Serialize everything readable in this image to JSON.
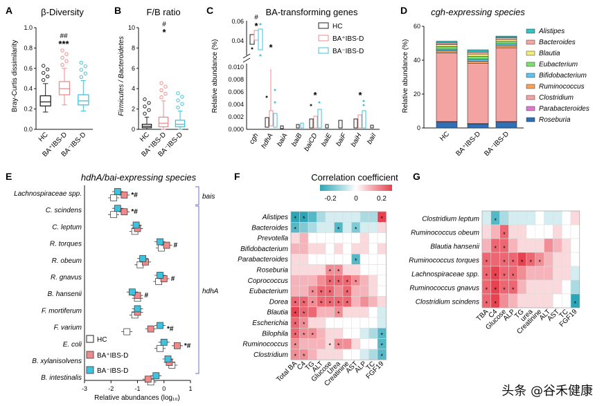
{
  "panels": {
    "A": {
      "letter": "A",
      "title": "β-Diversity",
      "ylabel": "Bray-Curtis dissimilarity",
      "yticks": [
        "0.0",
        "0.2",
        "0.4",
        "0.6",
        "0.8",
        "1.0"
      ],
      "groups": [
        "HC",
        "BA⁺IBS-D",
        "BA⁻IBS-D"
      ],
      "sig": {
        "hash": "##",
        "star": "***"
      }
    },
    "B": {
      "letter": "B",
      "title": "F/B ratio",
      "ylabel": "Firmicutes / Bacteroidetes",
      "yticks": [
        "0",
        "2",
        "4",
        "6",
        "8",
        "10"
      ],
      "groups": [
        "HC",
        "BA⁺IBS-D",
        "BA⁻IBS-D"
      ],
      "sig": {
        "hash": "#",
        "star": "*"
      }
    },
    "C": {
      "letter": "C",
      "title": "BA-transforming genes",
      "ylabel": "Relative abundance (%)",
      "yticks_upper": [
        "0.04",
        "0.06"
      ],
      "yticks_lower": [
        "0.000",
        "0.002",
        "0.004",
        "0.006",
        "0.008",
        "0.010"
      ],
      "genes": [
        "cgh",
        "hdhA",
        "baiA",
        "baiB",
        "baiCD",
        "baiE",
        "baiF",
        "baiH",
        "baiI"
      ],
      "legend": [
        "HC",
        "BA⁺IBS-D",
        "BA⁻IBS-D"
      ],
      "sig": {
        "cgh_hash": "#",
        "cgh_star": "*",
        "hdhA_star": "*",
        "baiCD_star": "*",
        "baiH_star": "*"
      }
    },
    "D": {
      "letter": "D",
      "title": "cgh-expressing species",
      "ylabel": "Relative abundance (%)",
      "yticks": [
        "0",
        "20",
        "40",
        "60"
      ],
      "groups": [
        "HC",
        "BA⁺IBS-D",
        "BA⁻IBS-D"
      ],
      "species": [
        "Alistipes",
        "Bacteroides",
        "Blautia",
        "Eubacterium",
        "Bifidobacterium",
        "Ruminococcus",
        "Clostridium",
        "Parabacteroides",
        "Roseburia"
      ]
    },
    "E": {
      "letter": "E",
      "title": "hdhA/bai-expressing species",
      "xlabel": "Relative abundances (log₁₀)",
      "xticks": [
        "-3",
        "-2",
        "-1",
        "0",
        "1"
      ],
      "species": [
        "Lachnospiraceae spp.",
        "C. scindens",
        "C. leptum",
        "R. torques",
        "R. obeum",
        "R. gnavus",
        "B. hansenii",
        "F. mortiferum",
        "F. varium",
        "E. coli",
        "B. xylanisolvens",
        "B. intestinalis"
      ],
      "sig": [
        "*#",
        "*#",
        "",
        "#",
        "",
        "#",
        "#",
        "",
        "*#",
        "*#",
        "",
        ""
      ],
      "brackets": {
        "bais": "bais",
        "hdhA": "hdhA"
      },
      "legend": [
        "HC",
        "BA⁺IBS-D",
        "BA⁻IBS-D"
      ]
    },
    "F": {
      "letter": "F",
      "title": "Correlation coefficient",
      "scale": [
        "-0.2",
        "0",
        "0.2"
      ],
      "rows": [
        "Alistipes",
        "Bacteroides",
        "Prevotella",
        "Bifidobacterium",
        "Parabacteroides",
        "Roseburia",
        "Coprococcus",
        "Eubacterium",
        "Dorea",
        "Blautia",
        "Escherichia",
        "Bilophila",
        "Ruminococcus",
        "Clostridium"
      ],
      "cols": [
        "Total BA",
        "C4",
        "TG",
        "ALT",
        "Glucose",
        "Urea",
        "Creatinine",
        "AST",
        "ALP",
        "TC",
        "FGF19"
      ]
    },
    "G": {
      "letter": "G",
      "rows": [
        "Clostridium leptum",
        "Ruminococcus obeum",
        "Blautia hansenii",
        "Ruminococcus torques",
        "Lachnospiraceae spp.",
        "Ruminococcus gnavus",
        "Clostridium scindens"
      ],
      "cols": [
        "TBA",
        "C4",
        "Glucose",
        "ALP",
        "TG",
        "urea",
        "Creatinine",
        "ALT",
        "AST",
        "TC",
        "FGF19"
      ]
    }
  },
  "chart_data": [
    {
      "type": "box",
      "panel": "A",
      "categories": [
        "HC",
        "BA+IBS-D",
        "BA-IBS-D"
      ],
      "median": [
        0.27,
        0.4,
        0.28
      ],
      "q1": [
        0.23,
        0.34,
        0.24
      ],
      "q3": [
        0.33,
        0.47,
        0.34
      ],
      "whisker_low": [
        0.17,
        0.24,
        0.18
      ],
      "whisker_high": [
        0.45,
        0.6,
        0.48
      ],
      "ylim": [
        0,
        1.0
      ]
    },
    {
      "type": "box",
      "panel": "B",
      "categories": [
        "HC",
        "BA+IBS-D",
        "BA-IBS-D"
      ],
      "median": [
        0.3,
        0.6,
        0.5
      ],
      "q1": [
        0.15,
        0.25,
        0.25
      ],
      "q3": [
        0.5,
        1.2,
        0.9
      ],
      "whisker_low": [
        0.0,
        0.0,
        0.0
      ],
      "whisker_high": [
        1.2,
        2.8,
        1.8
      ],
      "ylim": [
        0,
        10
      ]
    },
    {
      "type": "stacked_bar",
      "panel": "D",
      "categories": [
        "HC",
        "BA+IBS-D",
        "BA-IBS-D"
      ],
      "series": [
        {
          "name": "Roseburia",
          "values": [
            3.5,
            2.3,
            3.5
          ],
          "color": "#2e6fb6"
        },
        {
          "name": "Parabacteroides",
          "values": [
            0.3,
            0.3,
            0.3
          ],
          "color": "#e07ad0"
        },
        {
          "name": "Clostridium",
          "values": [
            40.5,
            35.5,
            43.5
          ],
          "color": "#f4a3a3"
        },
        {
          "name": "Ruminococcus",
          "values": [
            1.2,
            1.3,
            1.2
          ],
          "color": "#f5a35a"
        },
        {
          "name": "Bifidobacterium",
          "values": [
            1.0,
            1.2,
            1.0
          ],
          "color": "#5fc3f0"
        },
        {
          "name": "Eubacterium",
          "values": [
            1.5,
            1.6,
            1.5
          ],
          "color": "#7ddf72"
        },
        {
          "name": "Blautia",
          "values": [
            1.2,
            1.4,
            1.2
          ],
          "color": "#f2ec7a"
        },
        {
          "name": "Bacteroides",
          "values": [
            1.0,
            1.2,
            1.0
          ],
          "color": "#f7a6a0"
        },
        {
          "name": "Alistipes",
          "values": [
            1.0,
            1.3,
            1.0
          ],
          "color": "#33c2c2"
        }
      ],
      "ylim": [
        0,
        60
      ],
      "ylabel": "Relative abundance (%)"
    },
    {
      "type": "dot",
      "panel": "E",
      "categories": [
        "Lachnospiraceae spp.",
        "C. scindens",
        "C. leptum",
        "R. torques",
        "R. obeum",
        "R. gnavus",
        "B. hansenii",
        "F. mortiferum",
        "F. varium",
        "E. coli",
        "B. xylanisolvens",
        "B. intestinalis"
      ],
      "series": [
        {
          "name": "HC",
          "values": [
            -1.9,
            -1.9,
            -1.1,
            -0.1,
            -0.9,
            -0.2,
            -1.0,
            -1.1,
            -1.4,
            -0.15,
            0.3,
            -0.5
          ]
        },
        {
          "name": "BA+IBS-D",
          "values": [
            -1.5,
            -1.5,
            -1.0,
            0.1,
            -0.7,
            0.0,
            -1.0,
            -1.0,
            -0.5,
            0.5,
            0.2,
            -0.6
          ]
        },
        {
          "name": "BA-IBS-D",
          "values": [
            -1.75,
            -1.75,
            -1.05,
            -0.15,
            -0.8,
            -0.15,
            -1.2,
            -1.0,
            -0.15,
            0.0,
            0.15,
            -0.3
          ]
        }
      ],
      "xlim": [
        -3,
        1
      ]
    },
    {
      "type": "heatmap",
      "panel": "F",
      "rows": [
        "Alistipes",
        "Bacteroides",
        "Prevotella",
        "Bifidobacterium",
        "Parabacteroides",
        "Roseburia",
        "Coprococcus",
        "Eubacterium",
        "Dorea",
        "Blautia",
        "Escherichia",
        "Bilophila",
        "Ruminococcus",
        "Clostridium"
      ],
      "cols": [
        "Total BA",
        "C4",
        "TG",
        "ALT",
        "Glucose",
        "Urea",
        "Creatinine",
        "AST",
        "ALP",
        "TC",
        "FGF19"
      ],
      "values": [
        [
          -0.25,
          -0.3,
          -0.2,
          -0.1,
          -0.05,
          -0.05,
          -0.05,
          -0.05,
          -0.1,
          -0.1,
          0.25
        ],
        [
          -0.2,
          -0.15,
          -0.1,
          -0.05,
          -0.05,
          -0.2,
          -0.05,
          -0.15,
          -0.05,
          -0.05,
          0.05
        ],
        [
          0.05,
          0.1,
          0.0,
          0.0,
          0.0,
          0.0,
          0.0,
          0.0,
          0.05,
          0.0,
          0.0
        ],
        [
          0.1,
          0.1,
          0.05,
          0.05,
          0.0,
          0.05,
          0.0,
          0.05,
          0.05,
          0.0,
          0.05
        ],
        [
          0.05,
          0.05,
          0.0,
          0.0,
          0.0,
          0.0,
          0.0,
          -0.2,
          0.0,
          0.0,
          0.0
        ],
        [
          0.05,
          0.05,
          0.05,
          0.05,
          0.15,
          0.15,
          0.05,
          0.05,
          0.0,
          0.0,
          0.0
        ],
        [
          0.1,
          0.1,
          0.1,
          0.15,
          0.2,
          0.2,
          0.2,
          0.15,
          0.1,
          0.05,
          0.0
        ],
        [
          0.1,
          0.1,
          0.15,
          0.2,
          0.2,
          0.15,
          0.2,
          0.1,
          0.1,
          0.05,
          0.0
        ],
        [
          0.2,
          0.2,
          0.15,
          0.2,
          0.2,
          0.2,
          0.2,
          0.1,
          0.15,
          0.1,
          0.05
        ],
        [
          0.25,
          0.2,
          0.2,
          0.1,
          0.1,
          0.15,
          0.05,
          0.05,
          0.05,
          0.0,
          -0.05
        ],
        [
          0.2,
          0.15,
          0.05,
          0.05,
          0.0,
          0.0,
          0.0,
          0.0,
          0.0,
          0.0,
          -0.05
        ],
        [
          0.2,
          0.15,
          0.15,
          0.1,
          0.05,
          0.05,
          0.0,
          0.0,
          -0.05,
          -0.1,
          -0.2
        ],
        [
          0.15,
          0.1,
          0.1,
          0.1,
          0.05,
          0.15,
          0.15,
          0.05,
          0.0,
          0.0,
          -0.2
        ],
        [
          0.15,
          0.15,
          0.1,
          0.05,
          0.05,
          0.05,
          0.0,
          0.0,
          -0.05,
          -0.1,
          -0.2
        ]
      ],
      "stars": [
        [
          0,
          0
        ],
        [
          0,
          1
        ],
        [
          0,
          10
        ],
        [
          1,
          0
        ],
        [
          1,
          5
        ],
        [
          1,
          7
        ],
        [
          4,
          7
        ],
        [
          5,
          4
        ],
        [
          5,
          5
        ],
        [
          6,
          4
        ],
        [
          6,
          5
        ],
        [
          6,
          6
        ],
        [
          6,
          7
        ],
        [
          7,
          2
        ],
        [
          7,
          3
        ],
        [
          7,
          4
        ],
        [
          7,
          6
        ],
        [
          8,
          0
        ],
        [
          8,
          1
        ],
        [
          8,
          2
        ],
        [
          8,
          3
        ],
        [
          8,
          4
        ],
        [
          8,
          5
        ],
        [
          8,
          6
        ],
        [
          9,
          0
        ],
        [
          9,
          1
        ],
        [
          9,
          5
        ],
        [
          10,
          0
        ],
        [
          10,
          1
        ],
        [
          11,
          0
        ],
        [
          11,
          1
        ],
        [
          11,
          2
        ],
        [
          11,
          10
        ],
        [
          12,
          0
        ],
        [
          12,
          4
        ],
        [
          12,
          5
        ],
        [
          12,
          10
        ],
        [
          13,
          0
        ],
        [
          13,
          1
        ],
        [
          13,
          10
        ]
      ],
      "range": [
        -0.25,
        0.25
      ]
    },
    {
      "type": "heatmap",
      "panel": "G",
      "rows": [
        "Clostridium leptum",
        "Ruminococcus obeum",
        "Blautia hansenii",
        "Ruminococcus torques",
        "Lachnospiraceae spp.",
        "Ruminococcus gnavus",
        "Clostridium scindens"
      ],
      "cols": [
        "TBA",
        "C4",
        "Glucose",
        "ALP",
        "TG",
        "urea",
        "Creatinine",
        "ALT",
        "AST",
        "TC",
        "FGF19"
      ],
      "values": [
        [
          -0.05,
          -0.2,
          -0.1,
          -0.05,
          -0.05,
          -0.05,
          0.0,
          -0.05,
          -0.05,
          0.0,
          0.05
        ],
        [
          0.05,
          0.1,
          0.2,
          0.05,
          0.05,
          0.0,
          0.0,
          0.0,
          0.05,
          0.0,
          0.0
        ],
        [
          0.1,
          0.2,
          0.2,
          0.1,
          0.05,
          0.05,
          0.05,
          0.15,
          0.1,
          0.05,
          0.0
        ],
        [
          0.2,
          0.2,
          0.2,
          0.2,
          0.25,
          0.2,
          0.15,
          0.1,
          0.05,
          0.05,
          0.0
        ],
        [
          0.2,
          0.25,
          0.2,
          0.2,
          0.15,
          0.1,
          0.1,
          0.1,
          0.05,
          0.05,
          -0.05
        ],
        [
          0.2,
          0.25,
          0.2,
          0.2,
          0.1,
          0.05,
          0.05,
          0.05,
          0.05,
          0.0,
          -0.1
        ],
        [
          0.2,
          0.25,
          0.15,
          0.1,
          0.05,
          0.05,
          0.05,
          0.05,
          0.0,
          0.0,
          -0.25
        ]
      ],
      "stars": [
        [
          0,
          1
        ],
        [
          1,
          2
        ],
        [
          2,
          1
        ],
        [
          2,
          2
        ],
        [
          3,
          0
        ],
        [
          3,
          2
        ],
        [
          3,
          3
        ],
        [
          3,
          4
        ],
        [
          3,
          5
        ],
        [
          3,
          6
        ],
        [
          4,
          0
        ],
        [
          4,
          1
        ],
        [
          4,
          2
        ],
        [
          4,
          3
        ],
        [
          5,
          0
        ],
        [
          5,
          1
        ],
        [
          5,
          2
        ],
        [
          5,
          3
        ],
        [
          6,
          0
        ],
        [
          6,
          1
        ],
        [
          6,
          10
        ]
      ],
      "range": [
        -0.25,
        0.25
      ]
    }
  ],
  "watermark": "头条 @谷禾健康",
  "colors": {
    "hc": "#222222",
    "baplus": "#f08a8a",
    "baminus": "#3dc3dd",
    "pos": "#e8414f",
    "neg": "#2aa6b8"
  }
}
